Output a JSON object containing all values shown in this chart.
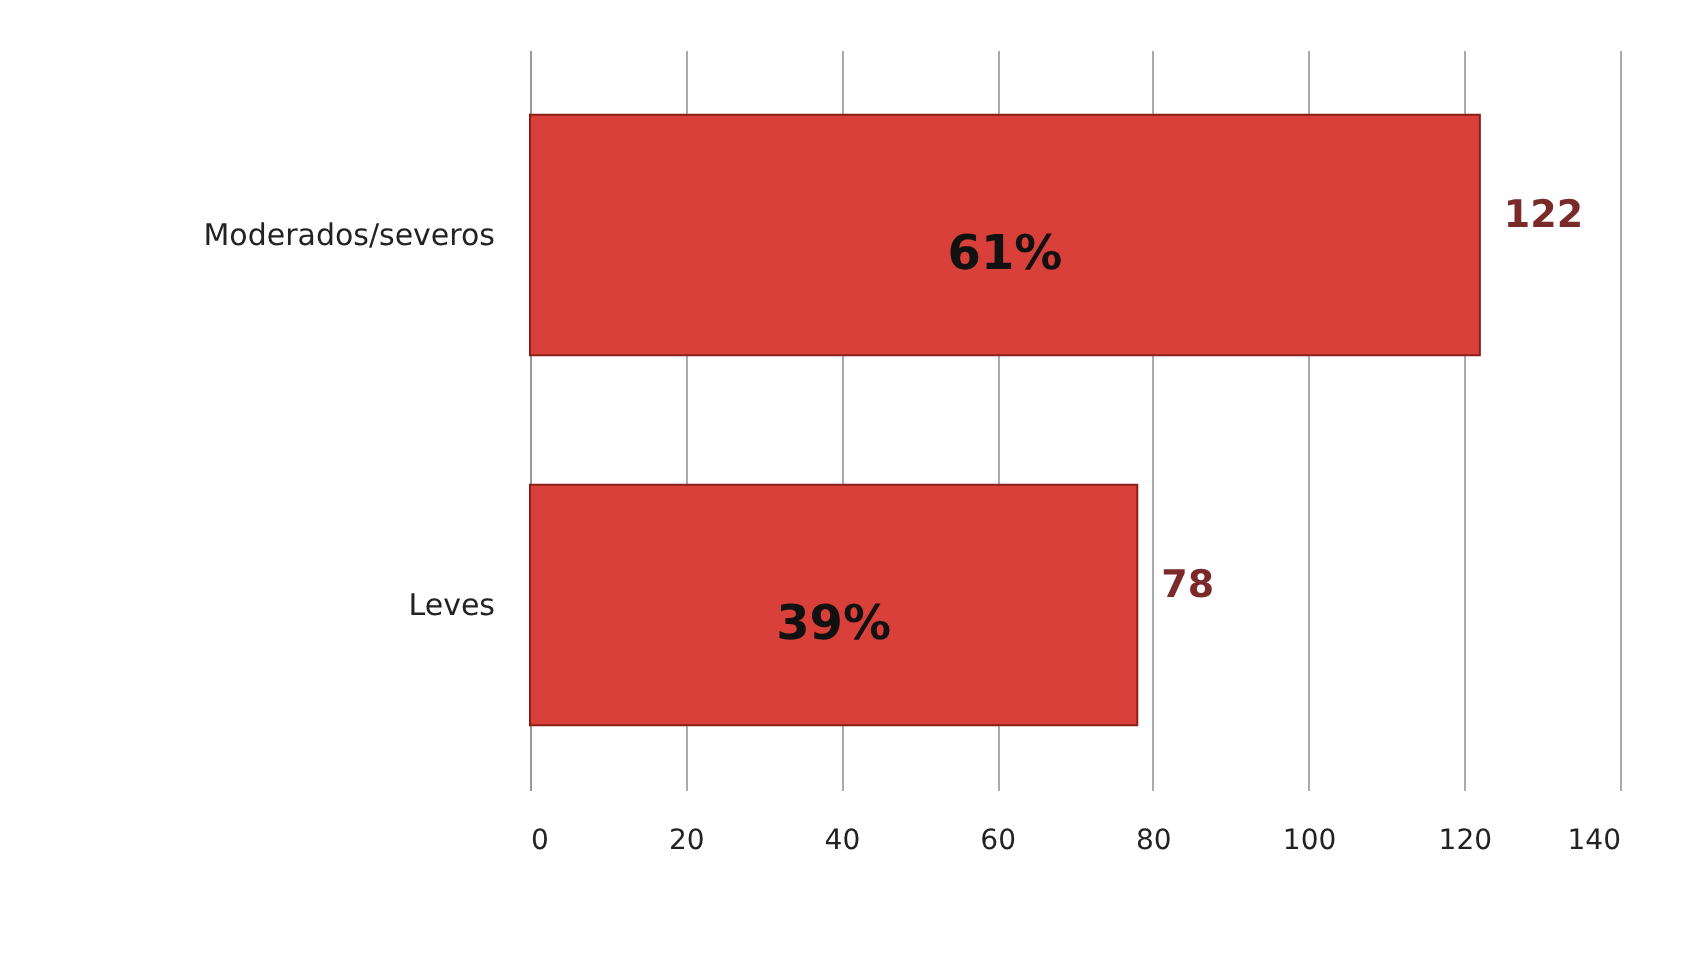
{
  "chart_data": {
    "type": "bar",
    "orientation": "horizontal",
    "categories": [
      "Moderados/severos",
      "Leves"
    ],
    "values": [
      122,
      78
    ],
    "color": "#d9403a",
    "data_labels": true,
    "xlim": [
      0,
      140
    ],
    "xticks": [
      0,
      20,
      40,
      60,
      80,
      100,
      120,
      140
    ],
    "grid": "x",
    "annotations": [
      "61%",
      "39%"
    ]
  }
}
